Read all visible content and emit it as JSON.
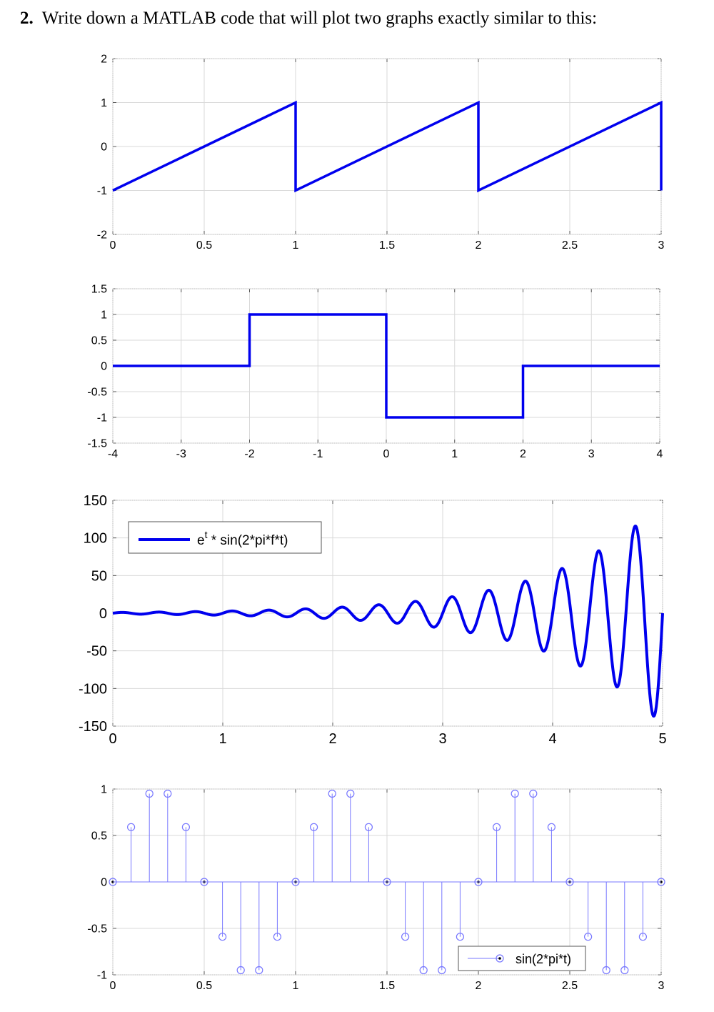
{
  "question": {
    "number": "2.",
    "text": "Write down a MATLAB code that will plot two graphs exactly similar to this:"
  },
  "colors": {
    "line": "#0000ee",
    "stem": "#7777ff",
    "grid": "#d9d9d9",
    "axis": "#555555"
  },
  "chart_data": [
    {
      "type": "line",
      "description": "sawtooth wave",
      "x": [
        0,
        1,
        1,
        2,
        2,
        3,
        3
      ],
      "y": [
        -1,
        1,
        -1,
        1,
        -1,
        1,
        -1
      ],
      "xlim": [
        0,
        3
      ],
      "ylim": [
        -2,
        2
      ],
      "xticks": [
        0,
        0.5,
        1,
        1.5,
        2,
        2.5,
        3
      ],
      "xtick_labels": [
        "0",
        "0.5",
        "1",
        "1.5",
        "2",
        "2.5",
        "3"
      ],
      "yticks": [
        -2,
        -1,
        0,
        1,
        2
      ],
      "ytick_labels": [
        "-2",
        "-1",
        "0",
        "1",
        "2"
      ],
      "grid": true
    },
    {
      "type": "line",
      "description": "rectangular pulse",
      "x": [
        -4,
        -2,
        -2,
        0,
        0,
        2,
        2,
        4
      ],
      "y": [
        0,
        0,
        1,
        1,
        -1,
        -1,
        0,
        0
      ],
      "xlim": [
        -4,
        4
      ],
      "ylim": [
        -1.5,
        1.5
      ],
      "xticks": [
        -4,
        -3,
        -2,
        -1,
        0,
        1,
        2,
        3,
        4
      ],
      "xtick_labels": [
        "-4",
        "-3",
        "-2",
        "-1",
        "0",
        "1",
        "2",
        "3",
        "4"
      ],
      "yticks": [
        -1.5,
        -1,
        -0.5,
        0,
        0.5,
        1,
        1.5
      ],
      "ytick_labels": [
        "-1.5",
        "-1",
        "-0.5",
        "0",
        "0.5",
        "1",
        "1.5"
      ],
      "grid": true
    },
    {
      "type": "line",
      "description": "e^t * sin(2*pi*f*t), f = 3",
      "function": {
        "amplitude_base": "e",
        "frequency": 3,
        "t_start": 0,
        "t_end": 5
      },
      "xlim": [
        0,
        5
      ],
      "ylim": [
        -150,
        150
      ],
      "xticks": [
        0,
        1,
        2,
        3,
        4,
        5
      ],
      "xtick_labels": [
        "0",
        "1",
        "2",
        "3",
        "4",
        "5"
      ],
      "yticks": [
        -150,
        -100,
        -50,
        0,
        50,
        100,
        150
      ],
      "ytick_labels": [
        "-150",
        "-100",
        "-50",
        "0",
        "50",
        "100",
        "150"
      ],
      "legend": {
        "base": "e",
        "sup": "t",
        "rest": " * sin(2*pi*f*t)",
        "placement": "top-left"
      },
      "grid": true
    },
    {
      "type": "stem",
      "description": "sin(2*pi*t) sampled every 0.1",
      "x": [
        0,
        0.1,
        0.2,
        0.3,
        0.4,
        0.5,
        0.6,
        0.7,
        0.8,
        0.9,
        1.0,
        1.1,
        1.2,
        1.3,
        1.4,
        1.5,
        1.6,
        1.7,
        1.8,
        1.9,
        2.0,
        2.1,
        2.2,
        2.3,
        2.4,
        2.5,
        2.6,
        2.7,
        2.8,
        2.9,
        3.0
      ],
      "y": [
        0,
        0.59,
        0.95,
        0.95,
        0.59,
        0,
        -0.59,
        -0.95,
        -0.95,
        -0.59,
        0,
        0.59,
        0.95,
        0.95,
        0.59,
        0,
        -0.59,
        -0.95,
        -0.95,
        -0.59,
        0,
        0.59,
        0.95,
        0.95,
        0.59,
        0,
        -0.59,
        -0.95,
        -0.95,
        -0.59,
        0
      ],
      "xlim": [
        0,
        3
      ],
      "ylim": [
        -1,
        1
      ],
      "xticks": [
        0,
        0.5,
        1,
        1.5,
        2,
        2.5,
        3
      ],
      "xtick_labels": [
        "0",
        "0.5",
        "1",
        "1.5",
        "2",
        "2.5",
        "3"
      ],
      "yticks": [
        -1,
        -0.5,
        0,
        0.5,
        1
      ],
      "ytick_labels": [
        "-1",
        "-0.5",
        "0",
        "0.5",
        "1"
      ],
      "legend": {
        "label": "sin(2*pi*t)",
        "placement": "bottom-right"
      },
      "grid": true
    }
  ]
}
